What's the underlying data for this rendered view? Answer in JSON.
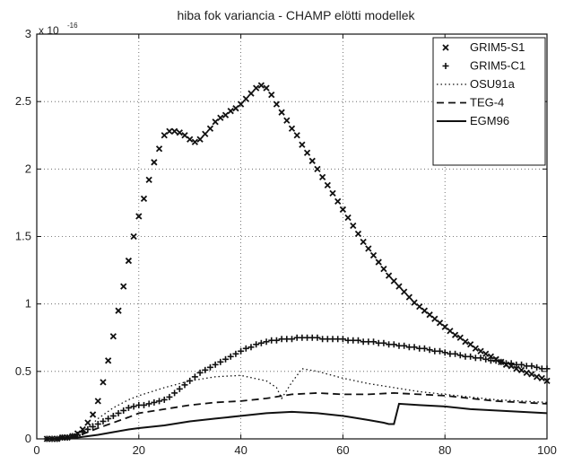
{
  "chart_data": {
    "type": "line",
    "title": "hiba fok variancia - CHAMP elötti modellek",
    "xlabel": "",
    "ylabel": "",
    "multiplier": "x 10",
    "multiplier_exp": "-16",
    "xlim": [
      0,
      100
    ],
    "ylim": [
      0,
      3
    ],
    "xticks": [
      0,
      20,
      40,
      60,
      80,
      100
    ],
    "yticks": [
      0,
      0.5,
      1,
      1.5,
      2,
      2.5,
      3
    ],
    "ytick_labels": [
      "0",
      "0.5",
      "1",
      "1.5",
      "2",
      "2.5",
      "3"
    ],
    "grid": true,
    "legend_position": "top-right",
    "series": [
      {
        "name": "GRIM5-S1",
        "style": "x-markers",
        "x": [
          2,
          3,
          4,
          5,
          6,
          7,
          8,
          9,
          10,
          11,
          12,
          13,
          14,
          15,
          16,
          17,
          18,
          19,
          20,
          21,
          22,
          23,
          24,
          25,
          26,
          27,
          28,
          29,
          30,
          31,
          32,
          33,
          34,
          35,
          36,
          37,
          38,
          39,
          40,
          41,
          42,
          43,
          44,
          45,
          46,
          47,
          48,
          49,
          50,
          51,
          52,
          53,
          54,
          55,
          56,
          57,
          58,
          59,
          60,
          61,
          62,
          63,
          64,
          65,
          66,
          67,
          68,
          69,
          70,
          71,
          72,
          73,
          74,
          75,
          76,
          77,
          78,
          79,
          80,
          81,
          82,
          83,
          84,
          85,
          86,
          87,
          88,
          89,
          90,
          91,
          92,
          93,
          94,
          95,
          96,
          97,
          98,
          99,
          100
        ],
        "y": [
          0.0,
          0.0,
          0.0,
          0.01,
          0.01,
          0.02,
          0.04,
          0.07,
          0.12,
          0.18,
          0.28,
          0.42,
          0.58,
          0.76,
          0.95,
          1.13,
          1.32,
          1.5,
          1.65,
          1.78,
          1.92,
          2.05,
          2.15,
          2.25,
          2.28,
          2.28,
          2.27,
          2.25,
          2.22,
          2.2,
          2.22,
          2.26,
          2.3,
          2.35,
          2.38,
          2.4,
          2.43,
          2.45,
          2.48,
          2.52,
          2.56,
          2.6,
          2.62,
          2.6,
          2.55,
          2.48,
          2.42,
          2.36,
          2.3,
          2.25,
          2.18,
          2.12,
          2.06,
          2.0,
          1.94,
          1.88,
          1.82,
          1.76,
          1.7,
          1.64,
          1.58,
          1.52,
          1.46,
          1.41,
          1.36,
          1.31,
          1.26,
          1.21,
          1.17,
          1.13,
          1.09,
          1.05,
          1.01,
          0.98,
          0.95,
          0.92,
          0.89,
          0.86,
          0.83,
          0.8,
          0.77,
          0.75,
          0.72,
          0.7,
          0.67,
          0.65,
          0.63,
          0.61,
          0.59,
          0.57,
          0.55,
          0.54,
          0.52,
          0.51,
          0.49,
          0.48,
          0.46,
          0.45,
          0.43
        ]
      },
      {
        "name": "GRIM5-C1",
        "style": "plus-markers",
        "x": [
          2,
          3,
          4,
          5,
          6,
          7,
          8,
          9,
          10,
          11,
          12,
          13,
          14,
          15,
          16,
          17,
          18,
          19,
          20,
          21,
          22,
          23,
          24,
          25,
          26,
          27,
          28,
          29,
          30,
          31,
          32,
          33,
          34,
          35,
          36,
          37,
          38,
          39,
          40,
          41,
          42,
          43,
          44,
          45,
          46,
          47,
          48,
          49,
          50,
          51,
          52,
          53,
          54,
          55,
          56,
          57,
          58,
          59,
          60,
          61,
          62,
          63,
          64,
          65,
          66,
          67,
          68,
          69,
          70,
          71,
          72,
          73,
          74,
          75,
          76,
          77,
          78,
          79,
          80,
          81,
          82,
          83,
          84,
          85,
          86,
          87,
          88,
          89,
          90,
          91,
          92,
          93,
          94,
          95,
          96,
          97,
          98,
          99,
          100
        ],
        "y": [
          0.0,
          0.0,
          0.0,
          0.01,
          0.01,
          0.02,
          0.03,
          0.05,
          0.07,
          0.09,
          0.11,
          0.13,
          0.15,
          0.17,
          0.19,
          0.21,
          0.23,
          0.24,
          0.25,
          0.25,
          0.26,
          0.27,
          0.28,
          0.29,
          0.31,
          0.34,
          0.37,
          0.4,
          0.43,
          0.46,
          0.49,
          0.51,
          0.53,
          0.55,
          0.57,
          0.59,
          0.61,
          0.63,
          0.65,
          0.67,
          0.68,
          0.7,
          0.71,
          0.72,
          0.73,
          0.73,
          0.74,
          0.74,
          0.74,
          0.75,
          0.75,
          0.75,
          0.75,
          0.75,
          0.74,
          0.74,
          0.74,
          0.74,
          0.74,
          0.73,
          0.73,
          0.73,
          0.72,
          0.72,
          0.72,
          0.71,
          0.71,
          0.7,
          0.7,
          0.69,
          0.69,
          0.68,
          0.68,
          0.67,
          0.67,
          0.66,
          0.65,
          0.65,
          0.64,
          0.63,
          0.63,
          0.62,
          0.61,
          0.61,
          0.6,
          0.6,
          0.59,
          0.58,
          0.58,
          0.57,
          0.56,
          0.56,
          0.55,
          0.55,
          0.54,
          0.54,
          0.53,
          0.52,
          0.52
        ]
      },
      {
        "name": "OSU91a",
        "style": "dotted",
        "x": [
          2,
          5,
          8,
          10,
          12,
          15,
          18,
          20,
          25,
          30,
          35,
          40,
          45,
          47,
          48,
          50,
          52,
          55,
          60,
          65,
          70,
          75,
          80,
          85,
          90,
          95,
          100
        ],
        "y": [
          0.0,
          0.01,
          0.04,
          0.08,
          0.15,
          0.23,
          0.29,
          0.32,
          0.38,
          0.43,
          0.46,
          0.47,
          0.43,
          0.38,
          0.3,
          0.42,
          0.52,
          0.5,
          0.45,
          0.41,
          0.38,
          0.35,
          0.33,
          0.31,
          0.29,
          0.28,
          0.27
        ]
      },
      {
        "name": "TEG-4",
        "style": "dashed",
        "x": [
          2,
          5,
          8,
          10,
          12,
          15,
          18,
          20,
          25,
          30,
          35,
          40,
          45,
          50,
          55,
          60,
          65,
          70,
          75,
          80,
          85,
          90,
          95,
          100
        ],
        "y": [
          0.0,
          0.01,
          0.02,
          0.05,
          0.08,
          0.12,
          0.16,
          0.19,
          0.22,
          0.25,
          0.27,
          0.28,
          0.3,
          0.33,
          0.34,
          0.33,
          0.33,
          0.34,
          0.33,
          0.32,
          0.3,
          0.28,
          0.27,
          0.26
        ]
      },
      {
        "name": "EGM96",
        "style": "solid",
        "x": [
          2,
          5,
          8,
          10,
          12,
          15,
          18,
          20,
          25,
          30,
          35,
          40,
          45,
          50,
          55,
          60,
          65,
          68,
          69,
          70,
          71,
          75,
          80,
          85,
          90,
          95,
          100
        ],
        "y": [
          0.0,
          0.0,
          0.01,
          0.02,
          0.03,
          0.05,
          0.07,
          0.08,
          0.1,
          0.13,
          0.15,
          0.17,
          0.19,
          0.2,
          0.19,
          0.17,
          0.14,
          0.12,
          0.11,
          0.11,
          0.26,
          0.25,
          0.24,
          0.22,
          0.21,
          0.2,
          0.19
        ]
      }
    ]
  }
}
